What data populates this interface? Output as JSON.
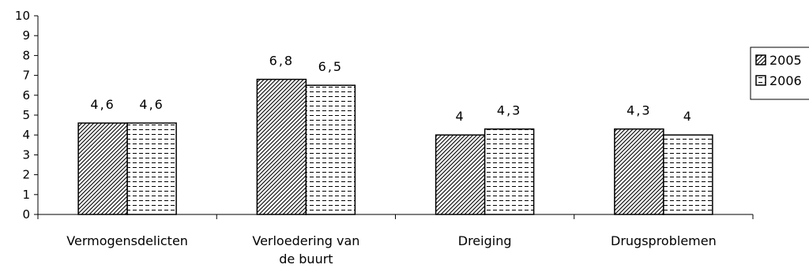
{
  "chart_data": {
    "type": "bar",
    "categories": [
      [
        "Vermogensdelicten"
      ],
      [
        "Verloedering van",
        "de buurt"
      ],
      [
        "Dreiging"
      ],
      [
        "Drugsproblemen"
      ]
    ],
    "series": [
      {
        "name": "2005",
        "values": [
          4.6,
          6.8,
          4.0,
          4.3
        ],
        "labels": [
          "4,6",
          "6,8",
          "4",
          "4,3"
        ],
        "pattern": "diagonal-hatch"
      },
      {
        "name": "2006",
        "values": [
          4.6,
          6.5,
          4.3,
          4.0
        ],
        "labels": [
          "4,6",
          "6,5",
          "4,3",
          "4"
        ],
        "pattern": "horizontal-dash"
      }
    ],
    "title": "",
    "xlabel": "",
    "ylabel": "",
    "ylim": [
      0,
      10
    ],
    "yticks": [
      "0",
      "1",
      "2",
      "3",
      "4",
      "5",
      "6",
      "7",
      "8",
      "9",
      "10"
    ],
    "grid": false,
    "legend": "right"
  }
}
